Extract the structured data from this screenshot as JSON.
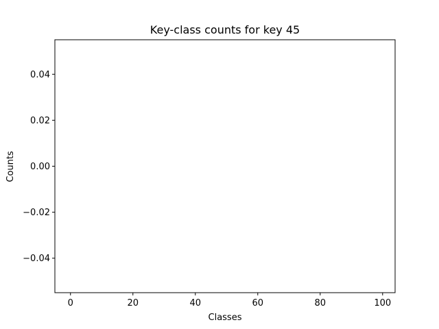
{
  "chart_data": {
    "type": "bar",
    "title": "Key-class counts for key 45",
    "xlabel": "Classes",
    "ylabel": "Counts",
    "xlim": [
      -5,
      104
    ],
    "ylim": [
      -0.055,
      0.055
    ],
    "x_ticks": [
      0,
      20,
      40,
      60,
      80,
      100
    ],
    "x_tick_labels": [
      "0",
      "20",
      "40",
      "60",
      "80",
      "100"
    ],
    "y_ticks": [
      -0.04,
      -0.02,
      0.0,
      0.02,
      0.04
    ],
    "y_tick_labels": [
      "−0.04",
      "−0.02",
      "0.00",
      "0.02",
      "0.04"
    ],
    "categories": [],
    "values": [],
    "grid": false,
    "legend": "none"
  }
}
